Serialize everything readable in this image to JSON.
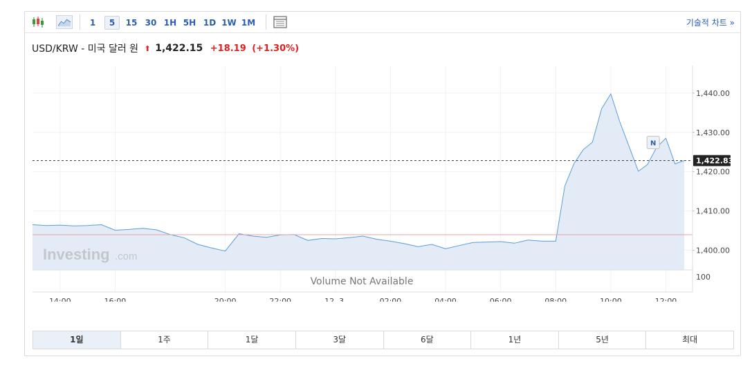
{
  "toolbar": {
    "timeframes": [
      "1",
      "5",
      "15",
      "30",
      "1H",
      "5H",
      "1D",
      "1W",
      "1M"
    ],
    "active_timeframe": "5",
    "tech_chart_link": "기술적 차트 »",
    "icons": [
      "candlestick-icon",
      "area-chart-icon",
      "layout-icon"
    ]
  },
  "header": {
    "pair": "USD/KRW - 미국 달러 원",
    "arrow": "⬆",
    "price": "1,422.15",
    "change": "+18.19",
    "change_pct": "(+1.30%)"
  },
  "chart": {
    "volume_text": "Volume Not Available",
    "watermark": "Investing",
    "watermark_suffix": ".com",
    "news_marker": "N",
    "current_price_label": "1,422.83",
    "volume_axis_label": "100",
    "colors": {
      "line": "#5b9bd5",
      "fill": "#e3ecf6",
      "prev_close": "#e8a0a0",
      "up": "#d22222"
    }
  },
  "chart_data": {
    "type": "area",
    "x": [
      "13:00",
      "13:30",
      "14:00",
      "14:30",
      "15:00",
      "15:30",
      "16:00",
      "16:30",
      "17:00",
      "17:30",
      "18:00",
      "18:30",
      "19:00",
      "19:30",
      "20:00",
      "20:30",
      "21:00",
      "21:30",
      "22:00",
      "22:30",
      "23:00",
      "23:30",
      "00:00",
      "00:30",
      "01:00",
      "01:30",
      "02:00",
      "02:30",
      "03:00",
      "03:30",
      "04:00",
      "04:30",
      "05:00",
      "05:30",
      "06:00",
      "06:30",
      "07:00",
      "07:30",
      "08:00",
      "08:20",
      "08:40",
      "09:00",
      "09:20",
      "09:40",
      "10:00",
      "10:20",
      "10:40",
      "11:00",
      "11:20",
      "11:40",
      "12:00",
      "12:20",
      "12:40"
    ],
    "series": [
      {
        "values": [
          1406.5,
          1406.3,
          1406.4,
          1406.2,
          1406.3,
          1406.5,
          1405.1,
          1405.3,
          1405.6,
          1405.2,
          1404.0,
          1403.2,
          1401.5,
          1400.6,
          1399.8,
          1404.2,
          1403.6,
          1403.3,
          1403.9,
          1404.0,
          1402.5,
          1403.0,
          1402.9,
          1403.2,
          1403.6,
          1402.8,
          1402.3,
          1401.7,
          1400.9,
          1401.5,
          1400.4,
          1401.2,
          1402.0,
          1402.1,
          1402.2,
          1401.8,
          1402.6,
          1402.3,
          1402.3,
          1416.4,
          1422.1,
          1425.6,
          1427.5,
          1436.0,
          1439.8,
          1432.6,
          1426.4,
          1420.1,
          1421.8,
          1426.2,
          1428.5,
          1422.0,
          1422.83
        ]
      }
    ],
    "y_ticks": [
      "1,400.00",
      "1,410.00",
      "1,420.00",
      "1,430.00",
      "1,440.00"
    ],
    "x_ticks": [
      "14:00",
      "16:00",
      "20:00",
      "22:00",
      "12. 3.",
      "02:00",
      "04:00",
      "06:00",
      "08:00",
      "10:00",
      "12:00"
    ],
    "ylim": [
      1395,
      1447
    ],
    "previous_close": 1403.96,
    "current": 1422.83
  },
  "range_tabs": [
    "1일",
    "1주",
    "1달",
    "3달",
    "6달",
    "1년",
    "5년",
    "최대"
  ],
  "active_range": "1일"
}
